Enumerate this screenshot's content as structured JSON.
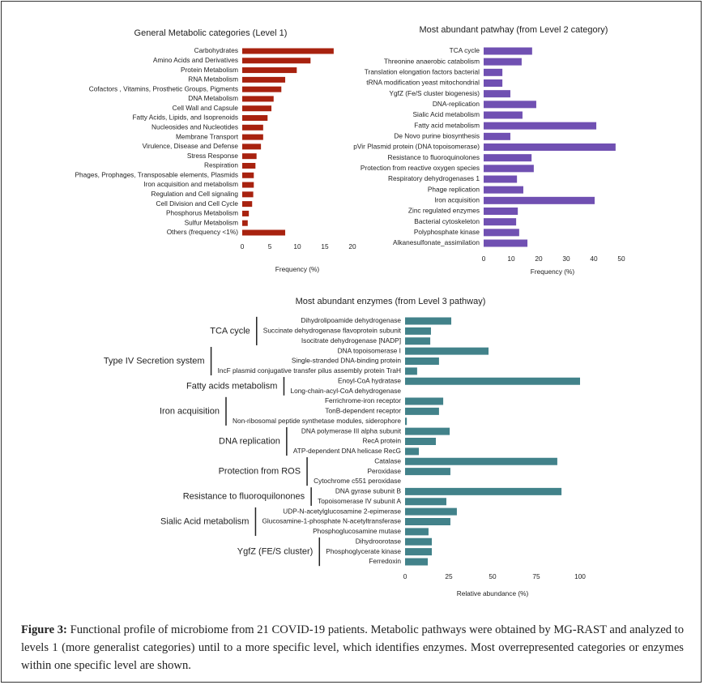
{
  "chart_data": [
    {
      "type": "bar",
      "orientation": "horizontal",
      "title": "General Metabolic categories (Level 1)",
      "x_label": "Frequency (%)",
      "color": "#a8220f",
      "categories": [
        "Carbohydrates",
        "Amino Acids and Derivatives",
        "Protein Metabolism",
        "RNA Metabolism",
        "Cofactors , Vitamins, Prosthetic Groups, Pigments",
        "DNA Metabolism",
        "Cell Wall and Capsule",
        "Fatty Acids, Lipids, and Isoprenoids",
        "Nucleosides and Nucleotides",
        "Membrane Transport",
        "Virulence, Disease and Defense",
        "Stress Response",
        "Respiration",
        "Phages, Prophages, Transposable elements, Plasmids",
        "Iron acquisition and metabolism",
        "Regulation and Cell signaling",
        "Cell Division and Cell Cycle",
        "Phosphorus Metabolism",
        "Sulfur Metabolism",
        "Others (frequency <1%)"
      ],
      "values": [
        16.6,
        12.4,
        9.9,
        7.8,
        7.1,
        5.7,
        5.3,
        4.6,
        3.8,
        3.8,
        3.4,
        2.6,
        2.4,
        2.1,
        2.1,
        2.0,
        1.8,
        1.2,
        1.0,
        7.8
      ],
      "xlim": [
        0,
        20
      ],
      "xticks": [
        0,
        5,
        10,
        15,
        20
      ]
    },
    {
      "type": "bar",
      "orientation": "horizontal",
      "title": "Most abundant patwhay (from Level 2 category)",
      "x_label": "Frequency (%)",
      "color": "#7050b2",
      "categories": [
        "TCA cycle",
        "Threonine anaerobic catabolism",
        "Translation elongation factors bacterial",
        "tRNA modification yeast mitochondrial",
        "YgfZ (Fe/S cluster biogenesis)",
        "DNA-replication",
        "Sialic Acid metabolism",
        "Fatty acid metabolism",
        "De Novo purine biosynthesis",
        "pVir Plasmid protein (DNA topoisomerase)",
        "Resistance to fluoroquinolones",
        "Protection from reactive oxygen species",
        "Respiratory dehydrogenases 1",
        "Phage replication",
        "Iron acquisition",
        "Zinc regulated enzymes",
        "Bacterial cytoskeleton",
        "Polyphosphate kinase",
        "Alkanesulfonate_assimilation"
      ],
      "values": [
        17.6,
        13.8,
        6.8,
        6.8,
        9.7,
        19.1,
        14.1,
        40.9,
        9.7,
        47.9,
        17.4,
        18.2,
        12.1,
        14.4,
        40.3,
        12.4,
        11.8,
        12.9,
        15.9
      ],
      "xlim": [
        0,
        50
      ],
      "xticks": [
        0,
        10,
        20,
        30,
        40,
        50
      ]
    },
    {
      "type": "bar",
      "orientation": "horizontal",
      "title": "Most abundant enzymes (from Level 3 pathway)",
      "x_label": "Relative abundance (%)",
      "color": "#42828a",
      "groups": [
        {
          "name": "TCA cycle",
          "categories": [
            "Dihydrolipoamide dehydrogenase",
            "Succinate dehydrogenase flavoprotein subunit",
            "Isocitrate dehydrogenase [NADP]"
          ],
          "values": [
            26.4,
            14.8,
            14.4
          ]
        },
        {
          "name": "Type IV Secretion system",
          "categories": [
            "DNA topoisomerase I",
            "Single-stranded DNA-binding protein",
            "IncF plasmid conjugative transfer pilus assembly protein TraH"
          ],
          "values": [
            47.7,
            19.4,
            6.9
          ]
        },
        {
          "name": "Fatty acids metabolism",
          "categories": [
            "Enoyl-CoA hydratase",
            "Long-chain-acyl-CoA dehydrogenase"
          ],
          "values": [
            100,
            0
          ]
        },
        {
          "name": "Iron acquisition",
          "categories": [
            "Ferrichrome-iron receptor",
            "TonB-dependent receptor",
            "Non-ribosomal peptide synthetase modules, siderophore"
          ],
          "values": [
            21.8,
            19.4,
            1
          ]
        },
        {
          "name": "DNA replication",
          "categories": [
            "DNA polymerase III alpha subunit",
            "RecA protein",
            "ATP-dependent DNA helicase RecG"
          ],
          "values": [
            25.5,
            17.6,
            7.9
          ]
        },
        {
          "name": "Protection from ROS",
          "categories": [
            "Catalase",
            "Peroxidase",
            "Cytochrome c551 peroxidase"
          ],
          "values": [
            87,
            25.9,
            0
          ]
        },
        {
          "name": "Resistance to fluoroquilonones",
          "categories": [
            "DNA gyrase subunit B",
            "Topoisomerase IV subunit A"
          ],
          "values": [
            89.4,
            23.6
          ]
        },
        {
          "name": "Sialic Acid metabolism",
          "categories": [
            "UDP-N-acetylglucosamine 2-epimerase",
            "Glucosamine-1-phosphate N-acetyltransferase",
            "Phosphoglucosamine mutase"
          ],
          "values": [
            29.6,
            25.9,
            13.4
          ]
        },
        {
          "name": "YgfZ (FE/S cluster)",
          "categories": [
            "Dihydroorotase",
            "Phosphoglycerate kinase",
            "Ferredoxin"
          ],
          "values": [
            15.3,
            15.3,
            13.0
          ]
        }
      ],
      "xlim": [
        0,
        100
      ],
      "xticks": [
        0,
        25,
        50,
        75,
        100
      ]
    }
  ],
  "caption": {
    "label": "Figure 3:",
    "text": "Functional profile of microbiome from 21 COVID-19 patients. Metabolic pathways were obtained by MG-RAST and analyzed to levels 1 (more generalist categories) until to a more specific level, which identifies enzymes. Most overrepresented categories or enzymes within one specific level are shown."
  }
}
